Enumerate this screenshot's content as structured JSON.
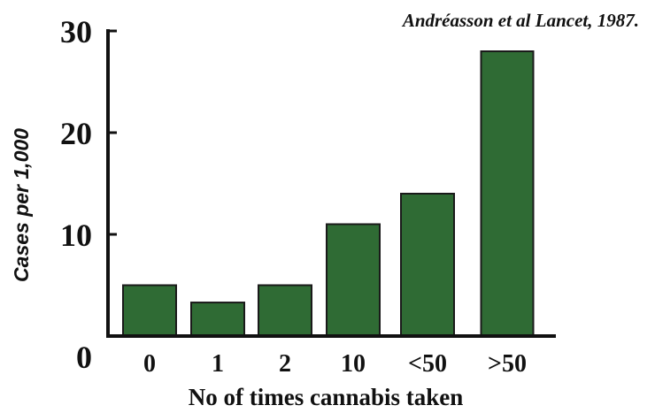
{
  "chart_data": {
    "type": "bar",
    "categories": [
      "0",
      "1",
      "2",
      "10",
      "<50",
      ">50"
    ],
    "values": [
      5,
      3.3,
      5,
      11,
      14,
      28
    ],
    "citation": "Andréasson et al Lancet, 1987.",
    "xlabel": "No of times cannabis taken",
    "ylabel": "Cases per 1,000",
    "yticks": [
      "0",
      "10",
      "20",
      "30"
    ],
    "ylim": [
      0,
      30
    ],
    "bar_color": "#2f6b34",
    "bar_edge_color": "#1a1a1a",
    "grid": false,
    "legend": "none"
  }
}
